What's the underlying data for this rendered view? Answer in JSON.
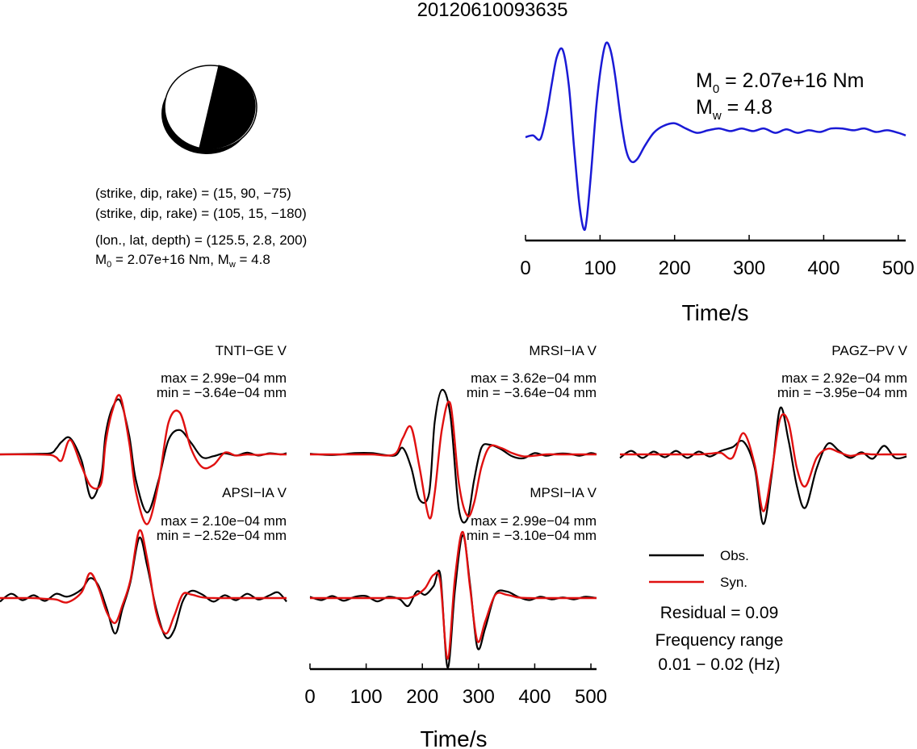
{
  "title": "20120610093635",
  "mechanism": {
    "line1": "(strike, dip, rake) = (15, 90, −75)",
    "line2": "(strike, dip, rake) = (105, 15, −180)",
    "line3": "(lon., lat, depth) = (125.5, 2.8, 200)",
    "line4_m0_prefix": "M",
    "line4_m0_sub": "0",
    "line4_m0_value": " = 2.07e+16 Nm, M",
    "line4_mw_sub": "w",
    "line4_mw_value": " = 4.8"
  },
  "stf_label": {
    "m0_prefix": "M",
    "m0_sub": "0",
    "m0_value": " = 2.07e+16 Nm",
    "mw_prefix": "M",
    "mw_sub": "w",
    "mw_value": " = 4.8"
  },
  "legend": {
    "obs_label": "Obs.",
    "syn_label": "Syn.",
    "residual": "Residual = 0.09",
    "freq_title": "Frequency range",
    "freq_value": "0.01 − 0.02 (Hz)"
  },
  "colors": {
    "stf": "#1a1ad6",
    "observed": "#000000",
    "synthetic": "#e01010",
    "beachball_fill": "#000000"
  },
  "chart_data": [
    {
      "type": "line",
      "name": "source-time-function",
      "xlabel": "Time/s",
      "xlim": [
        0,
        510
      ],
      "xticks": [
        0,
        100,
        200,
        300,
        400,
        500
      ],
      "series": [
        {
          "x": [
            0,
            10,
            20,
            28,
            35,
            42,
            50,
            58,
            65,
            72,
            78,
            82,
            88,
            95,
            102,
            108,
            114,
            120,
            128,
            135,
            142,
            150,
            160,
            172,
            185,
            200,
            215,
            230,
            245,
            260,
            275,
            290,
            305,
            320,
            335,
            350,
            365,
            380,
            395,
            410,
            425,
            440,
            455,
            470,
            485,
            500,
            510
          ],
          "y": [
            0,
            0.02,
            -0.02,
            0.25,
            0.6,
            0.92,
            1.0,
            0.6,
            -0.1,
            -0.75,
            -1.05,
            -0.95,
            -0.4,
            0.35,
            0.85,
            1.08,
            1.0,
            0.72,
            0.2,
            -0.15,
            -0.28,
            -0.25,
            -0.1,
            0.05,
            0.13,
            0.16,
            0.1,
            0.05,
            0.08,
            0.1,
            0.07,
            0.1,
            0.07,
            0.1,
            0.05,
            0.09,
            0.05,
            0.08,
            0.06,
            0.1,
            0.1,
            0.08,
            0.1,
            0.06,
            0.08,
            0.05,
            0.02
          ]
        }
      ]
    },
    {
      "type": "line",
      "name": "waveform-fits",
      "xlabel": "Time/s",
      "xlim": [
        0,
        510
      ],
      "xticks": [
        0,
        100,
        200,
        300,
        400,
        500
      ],
      "panels": [
        {
          "station": "TNTI−GE V",
          "max": "max = 2.99e−04 mm",
          "min": "min = −3.64e−04 mm",
          "obs": {
            "x": [
              0,
              60,
              90,
              100,
              110,
              125,
              145,
              162,
              180,
              188,
              200,
              214,
              230,
              242,
              262,
              282,
              300,
              320,
              340,
              360,
              380,
              400,
              420,
              440,
              460,
              480,
              500,
              510
            ],
            "y": [
              0,
              0.01,
              0.02,
              0.1,
              0.22,
              0.28,
              -0.1,
              -0.75,
              -0.38,
              0.35,
              0.8,
              0.92,
              0.32,
              -0.45,
              -1.0,
              -0.45,
              0.25,
              0.42,
              0.2,
              -0.05,
              -0.03,
              0.02,
              -0.02,
              0.03,
              -0.02,
              0.02,
              0,
              0.02
            ]
          },
          "syn": {
            "x": [
              0,
              60,
              90,
              100,
              110,
              125,
              145,
              162,
              180,
              188,
              200,
              214,
              230,
              242,
              262,
              282,
              300,
              320,
              340,
              360,
              380,
              400,
              420,
              440,
              460,
              480,
              500,
              510
            ],
            "y": [
              0,
              0,
              -0.01,
              -0.05,
              -0.1,
              0.25,
              -0.2,
              -0.55,
              -0.5,
              0.2,
              0.75,
              1.0,
              0.2,
              -0.65,
              -1.2,
              -0.5,
              0.55,
              0.72,
              0.1,
              -0.22,
              -0.18,
              0.03,
              -0.02,
              0,
              -0.01,
              0.01,
              0,
              0
            ]
          }
        },
        {
          "station": "MRSI−IA V",
          "max": "max = 3.62e−04 mm",
          "min": "min = −3.64e−04 mm",
          "obs": {
            "x": [
              0,
              40,
              80,
              110,
              150,
              165,
              180,
              195,
              212,
              222,
              235,
              250,
              265,
              280,
              292,
              305,
              320,
              340,
              360,
              380,
              400,
              420,
              440,
              460,
              480,
              500,
              510
            ],
            "y": [
              0.01,
              -0.01,
              0.02,
              0.02,
              -0.02,
              0.1,
              -0.2,
              -0.7,
              -0.6,
              0.5,
              1.0,
              0.6,
              -0.85,
              -1.0,
              -0.4,
              0.1,
              0.15,
              0.08,
              -0.03,
              -0.06,
              0.02,
              -0.02,
              0.01,
              0.01,
              -0.02,
              0.02,
              0
            ]
          },
          "syn": {
            "x": [
              0,
              40,
              80,
              110,
              150,
              165,
              180,
              195,
              212,
              222,
              235,
              250,
              265,
              280,
              292,
              305,
              320,
              340,
              360,
              380,
              400,
              420,
              440,
              460,
              480,
              500,
              510
            ],
            "y": [
              0,
              0,
              0,
              0,
              0,
              0.25,
              0.42,
              -0.2,
              -0.98,
              -0.6,
              0.4,
              0.78,
              -0.45,
              -0.95,
              -0.75,
              -0.2,
              0.12,
              0.1,
              0.02,
              -0.03,
              -0.02,
              0,
              0,
              0,
              0,
              0,
              0
            ]
          }
        },
        {
          "station": "PAGZ−PV V",
          "max": "max = 2.92e−04 mm",
          "min": "min = −3.95e−04 mm",
          "obs": {
            "x": [
              0,
              20,
              40,
              60,
              80,
              100,
              120,
              140,
              160,
              180,
              200,
              220,
              240,
              255,
              270,
              285,
              300,
              315,
              330,
              350,
              370,
              390,
              410,
              430,
              450,
              470,
              490,
              510
            ],
            "y": [
              -0.05,
              0.05,
              -0.05,
              0.04,
              -0.04,
              0.05,
              -0.05,
              0.04,
              -0.03,
              0.05,
              0.1,
              0.18,
              -0.2,
              -0.98,
              -0.3,
              0.65,
              0.2,
              -0.45,
              -0.75,
              -0.2,
              0.15,
              0.05,
              -0.05,
              0.03,
              -0.06,
              0.12,
              -0.05,
              -0.03
            ]
          },
          "syn": {
            "x": [
              0,
              20,
              40,
              60,
              80,
              100,
              120,
              140,
              160,
              180,
              200,
              220,
              240,
              255,
              270,
              285,
              300,
              315,
              330,
              350,
              370,
              390,
              410,
              430,
              450,
              470,
              490,
              510
            ],
            "y": [
              0,
              0,
              0,
              0,
              0,
              0,
              0,
              0,
              0.01,
              0.02,
              -0.05,
              0.3,
              -0.15,
              -0.8,
              -0.25,
              0.5,
              0.45,
              -0.2,
              -0.45,
              -0.05,
              0.08,
              0.03,
              -0.02,
              0.01,
              0,
              0,
              0,
              0
            ]
          }
        },
        {
          "station": "APSI−IA V",
          "max": "max = 2.10e−04 mm",
          "min": "min = −2.52e−04 mm",
          "obs": {
            "x": [
              0,
              20,
              40,
              60,
              80,
              100,
              120,
              145,
              160,
              175,
              190,
              205,
              218,
              232,
              248,
              262,
              278,
              295,
              310,
              325,
              340,
              360,
              380,
              400,
              420,
              440,
              460,
              480,
              495,
              510
            ],
            "y": [
              -0.05,
              0.06,
              -0.03,
              0.04,
              -0.04,
              0.06,
              0.02,
              0.12,
              0.28,
              0.18,
              -0.15,
              -0.5,
              -0.15,
              0.22,
              0.85,
              0.45,
              -0.15,
              -0.55,
              -0.45,
              -0.05,
              0.1,
              0.05,
              -0.05,
              0.04,
              -0.03,
              0.06,
              -0.02,
              0.04,
              0.08,
              -0.05
            ]
          },
          "syn": {
            "x": [
              0,
              20,
              40,
              60,
              80,
              100,
              120,
              145,
              160,
              175,
              190,
              205,
              218,
              232,
              248,
              262,
              278,
              295,
              310,
              325,
              340,
              360,
              380,
              400,
              420,
              440,
              460,
              480,
              495,
              510
            ],
            "y": [
              0,
              0,
              0,
              0,
              -0.01,
              -0.02,
              -0.06,
              0.08,
              0.35,
              0.15,
              -0.2,
              -0.35,
              -0.1,
              0.25,
              0.95,
              0.55,
              -0.2,
              -0.5,
              -0.25,
              0.05,
              0.05,
              0.01,
              0,
              0,
              0,
              0,
              0,
              0,
              0,
              0
            ]
          }
        },
        {
          "station": "MPSI−IA V",
          "max": "max = 2.99e−04 mm",
          "min": "min = −3.10e−04 mm",
          "obs": {
            "x": [
              0,
              20,
              40,
              60,
              80,
              100,
              120,
              140,
              160,
              175,
              190,
              205,
              220,
              232,
              245,
              258,
              272,
              285,
              298,
              312,
              330,
              350,
              370,
              390,
              410,
              430,
              450,
              470,
              490,
              510
            ],
            "y": [
              0.02,
              -0.03,
              0.03,
              -0.04,
              0.02,
              0.03,
              -0.05,
              0.02,
              -0.02,
              -0.12,
              0.1,
              0.05,
              0.18,
              0.35,
              -1.05,
              0.12,
              0.95,
              0.2,
              -0.75,
              -0.45,
              0.06,
              0.1,
              0.02,
              -0.03,
              0.02,
              -0.02,
              0.01,
              -0.02,
              0.02,
              0
            ]
          },
          "syn": {
            "x": [
              0,
              20,
              40,
              60,
              80,
              100,
              120,
              140,
              160,
              175,
              190,
              205,
              220,
              232,
              245,
              258,
              272,
              285,
              298,
              312,
              330,
              350,
              370,
              390,
              410,
              430,
              450,
              470,
              490,
              510
            ],
            "y": [
              0,
              0,
              0,
              0,
              0,
              0,
              0,
              0,
              0,
              0,
              0.05,
              0.15,
              0.35,
              0.25,
              -0.92,
              0.3,
              1.0,
              0.15,
              -0.65,
              -0.35,
              0.05,
              0.05,
              0.01,
              0,
              0,
              0,
              0,
              0,
              0,
              0
            ]
          }
        }
      ]
    }
  ]
}
